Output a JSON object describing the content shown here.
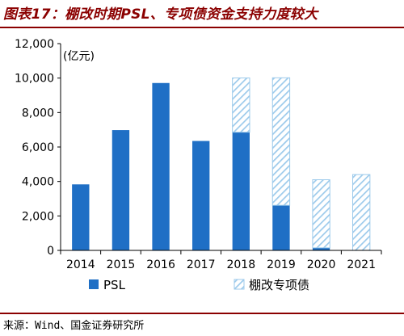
{
  "title": "图表17：棚改时期PSL、专项债资金支持力度较大",
  "source": "来源：Wind、国金证券研究所",
  "chart_data": {
    "type": "bar",
    "stacked": true,
    "unit_label": "(亿元)",
    "categories": [
      "2014",
      "2015",
      "2016",
      "2017",
      "2018",
      "2019",
      "2020",
      "2021"
    ],
    "series": [
      {
        "name": "PSL",
        "values": [
          3831,
          6981,
          9714,
          6350,
          6858,
          2617,
          150,
          0
        ],
        "color": "#1F6FC5",
        "pattern": "solid"
      },
      {
        "name": "棚改专项债",
        "values": [
          0,
          0,
          0,
          0,
          3150,
          7400,
          3950,
          4400
        ],
        "color": "#9CCAEB",
        "pattern": "hatched"
      }
    ],
    "ylim": [
      0,
      12000
    ],
    "yticks": [
      "0",
      "2,000",
      "4,000",
      "6,000",
      "8,000",
      "10,000",
      "12,000"
    ],
    "ytick_values": [
      0,
      2000,
      4000,
      6000,
      8000,
      10000,
      12000
    ],
    "grid": false,
    "legend": "bottom"
  }
}
